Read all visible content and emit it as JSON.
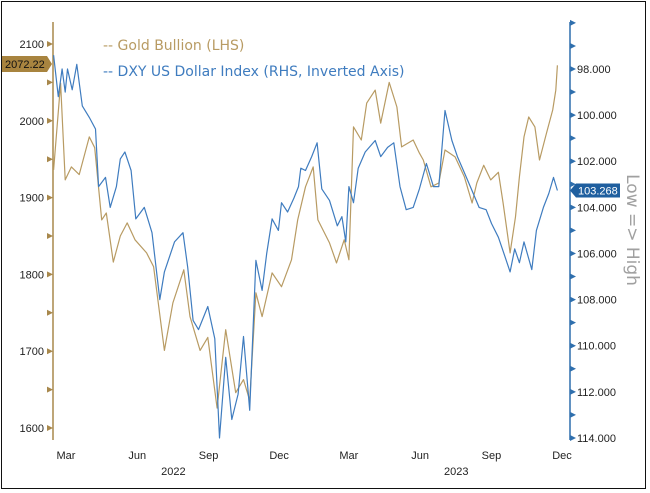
{
  "chart_data": {
    "type": "line",
    "title": "",
    "legend": {
      "placement": "top-left",
      "entries": [
        "-- Gold Bullion (LHS)",
        "-- DXY US Dollar Index (RHS, Inverted Axis)"
      ]
    },
    "x_axis": {
      "month_labels": [
        {
          "label": "Mar",
          "date": "2022-03-01"
        },
        {
          "label": "Jun",
          "date": "2022-06-01"
        },
        {
          "label": "Sep",
          "date": "2022-09-01"
        },
        {
          "label": "Dec",
          "date": "2022-12-01"
        },
        {
          "label": "Mar",
          "date": "2023-03-01"
        },
        {
          "label": "Jun",
          "date": "2023-06-01"
        },
        {
          "label": "Sep",
          "date": "2023-09-01"
        },
        {
          "label": "Dec",
          "date": "2023-12-01"
        }
      ],
      "year_labels": [
        {
          "label": "2022",
          "date": "2022-07-15"
        },
        {
          "label": "2023",
          "date": "2023-07-15"
        }
      ]
    },
    "y_left": {
      "range": [
        1600,
        2100
      ],
      "ticks": [
        "1600",
        "1700",
        "1800",
        "1900",
        "2000",
        "2100"
      ],
      "color": "#a8884c"
    },
    "y_right": {
      "range": [
        96,
        114
      ],
      "inverted": true,
      "ticks": [
        "98.000",
        "100.000",
        "102.000",
        "104.000",
        "106.000",
        "108.000",
        "110.000",
        "112.000",
        "114.000"
      ],
      "label": "Low => High",
      "color": "#2f6fad"
    },
    "grid": false,
    "series": [
      {
        "name": "Gold Bullion (LHS)",
        "axis": "left",
        "color": "#b89b63",
        "last_value_tag": "2072.22",
        "tag_color": "#a8843f",
        "points": [
          [
            "2022-02-13",
            1936
          ],
          [
            "2022-02-22",
            2049
          ],
          [
            "2022-02-28",
            1923
          ],
          [
            "2022-03-08",
            1940
          ],
          [
            "2022-03-18",
            1930
          ],
          [
            "2022-03-31",
            1979
          ],
          [
            "2022-04-07",
            1965
          ],
          [
            "2022-04-16",
            1871
          ],
          [
            "2022-04-22",
            1880
          ],
          [
            "2022-05-01",
            1816
          ],
          [
            "2022-05-10",
            1850
          ],
          [
            "2022-05-19",
            1867
          ],
          [
            "2022-05-29",
            1845
          ],
          [
            "2022-06-13",
            1828
          ],
          [
            "2022-06-22",
            1810
          ],
          [
            "2022-07-06",
            1701
          ],
          [
            "2022-07-17",
            1763
          ],
          [
            "2022-07-31",
            1806
          ],
          [
            "2022-08-08",
            1745
          ],
          [
            "2022-08-21",
            1701
          ],
          [
            "2022-08-31",
            1718
          ],
          [
            "2022-09-12",
            1626
          ],
          [
            "2022-09-23",
            1728
          ],
          [
            "2022-10-06",
            1646
          ],
          [
            "2022-10-16",
            1663
          ],
          [
            "2022-10-24",
            1636
          ],
          [
            "2022-11-01",
            1776
          ],
          [
            "2022-11-09",
            1745
          ],
          [
            "2022-11-22",
            1802
          ],
          [
            "2022-12-04",
            1784
          ],
          [
            "2022-12-17",
            1819
          ],
          [
            "2022-12-25",
            1871
          ],
          [
            "2023-01-04",
            1914
          ],
          [
            "2023-01-14",
            1940
          ],
          [
            "2023-01-20",
            1871
          ],
          [
            "2023-02-04",
            1841
          ],
          [
            "2023-02-13",
            1815
          ],
          [
            "2023-02-23",
            1845
          ],
          [
            "2023-03-01",
            1819
          ],
          [
            "2023-03-07",
            1992
          ],
          [
            "2023-03-17",
            1975
          ],
          [
            "2023-03-24",
            2023
          ],
          [
            "2023-04-04",
            2040
          ],
          [
            "2023-04-11",
            1997
          ],
          [
            "2023-04-22",
            2050
          ],
          [
            "2023-05-02",
            2018
          ],
          [
            "2023-05-08",
            1966
          ],
          [
            "2023-05-23",
            1975
          ],
          [
            "2023-05-31",
            1958
          ],
          [
            "2023-06-05",
            1949
          ],
          [
            "2023-06-15",
            1914
          ],
          [
            "2023-06-25",
            1919
          ],
          [
            "2023-07-03",
            1962
          ],
          [
            "2023-07-16",
            1953
          ],
          [
            "2023-07-28",
            1927
          ],
          [
            "2023-08-07",
            1893
          ],
          [
            "2023-08-13",
            1919
          ],
          [
            "2023-08-22",
            1942
          ],
          [
            "2023-08-31",
            1923
          ],
          [
            "2023-09-10",
            1933
          ],
          [
            "2023-09-16",
            1893
          ],
          [
            "2023-09-25",
            1828
          ],
          [
            "2023-10-02",
            1875
          ],
          [
            "2023-10-07",
            1927
          ],
          [
            "2023-10-13",
            1979
          ],
          [
            "2023-10-19",
            2005
          ],
          [
            "2023-10-27",
            1992
          ],
          [
            "2023-11-02",
            1949
          ],
          [
            "2023-11-11",
            1984
          ],
          [
            "2023-11-19",
            2014
          ],
          [
            "2023-11-23",
            2040
          ],
          [
            "2023-11-25",
            2072.22
          ]
        ]
      },
      {
        "name": "DXY US Dollar Index (RHS, Inverted Axis)",
        "axis": "right",
        "color": "#3f7cbf",
        "last_value_tag": "103.268",
        "tag_color": "#1f5f9f",
        "points": [
          [
            "2022-02-13",
            97.4
          ],
          [
            "2022-02-19",
            99.2
          ],
          [
            "2022-02-24",
            98.0
          ],
          [
            "2022-02-28",
            99.0
          ],
          [
            "2022-03-03",
            98.0
          ],
          [
            "2022-03-09",
            98.9
          ],
          [
            "2022-03-15",
            97.8
          ],
          [
            "2022-03-22",
            99.6
          ],
          [
            "2022-03-31",
            100.1
          ],
          [
            "2022-04-08",
            100.6
          ],
          [
            "2022-04-12",
            103.1
          ],
          [
            "2022-04-21",
            102.7
          ],
          [
            "2022-04-27",
            104.0
          ],
          [
            "2022-05-05",
            103.1
          ],
          [
            "2022-05-10",
            101.9
          ],
          [
            "2022-05-16",
            101.6
          ],
          [
            "2022-05-24",
            102.4
          ],
          [
            "2022-05-30",
            104.5
          ],
          [
            "2022-06-10",
            104.0
          ],
          [
            "2022-06-20",
            105.1
          ],
          [
            "2022-06-30",
            108.0
          ],
          [
            "2022-07-06",
            106.8
          ],
          [
            "2022-07-19",
            105.5
          ],
          [
            "2022-07-30",
            105.1
          ],
          [
            "2022-08-05",
            106.6
          ],
          [
            "2022-08-12",
            108.9
          ],
          [
            "2022-08-19",
            109.3
          ],
          [
            "2022-08-31",
            108.3
          ],
          [
            "2022-09-09",
            109.7
          ],
          [
            "2022-09-15",
            114.0
          ],
          [
            "2022-09-23",
            110.5
          ],
          [
            "2022-10-01",
            113.2
          ],
          [
            "2022-10-09",
            112.1
          ],
          [
            "2022-10-16",
            109.6
          ],
          [
            "2022-10-24",
            112.8
          ],
          [
            "2022-11-01",
            106.3
          ],
          [
            "2022-11-09",
            107.6
          ],
          [
            "2022-11-15",
            106.0
          ],
          [
            "2022-11-22",
            104.5
          ],
          [
            "2022-11-30",
            105.0
          ],
          [
            "2022-12-04",
            103.8
          ],
          [
            "2022-12-12",
            104.2
          ],
          [
            "2022-12-20",
            103.6
          ],
          [
            "2022-12-26",
            103.1
          ],
          [
            "2022-12-29",
            102.3
          ],
          [
            "2023-01-04",
            102.4
          ],
          [
            "2023-01-12",
            101.8
          ],
          [
            "2023-01-19",
            101.2
          ],
          [
            "2023-01-25",
            103.2
          ],
          [
            "2023-02-04",
            103.7
          ],
          [
            "2023-02-14",
            104.8
          ],
          [
            "2023-02-20",
            104.4
          ],
          [
            "2023-02-25",
            105.5
          ],
          [
            "2023-03-01",
            103.1
          ],
          [
            "2023-03-07",
            103.8
          ],
          [
            "2023-03-13",
            102.3
          ],
          [
            "2023-03-22",
            101.6
          ],
          [
            "2023-04-04",
            101.1
          ],
          [
            "2023-04-11",
            101.8
          ],
          [
            "2023-04-20",
            101.4
          ],
          [
            "2023-04-28",
            101.2
          ],
          [
            "2023-05-06",
            103.1
          ],
          [
            "2023-05-14",
            104.1
          ],
          [
            "2023-05-23",
            104.0
          ],
          [
            "2023-05-31",
            103.2
          ],
          [
            "2023-06-09",
            102.1
          ],
          [
            "2023-06-18",
            103.1
          ],
          [
            "2023-06-25",
            103.1
          ],
          [
            "2023-07-03",
            99.8
          ],
          [
            "2023-07-12",
            101.1
          ],
          [
            "2023-07-19",
            101.8
          ],
          [
            "2023-07-28",
            102.5
          ],
          [
            "2023-08-06",
            103.2
          ],
          [
            "2023-08-16",
            104.0
          ],
          [
            "2023-08-25",
            104.1
          ],
          [
            "2023-09-01",
            104.7
          ],
          [
            "2023-09-10",
            105.3
          ],
          [
            "2023-09-18",
            106.1
          ],
          [
            "2023-09-25",
            106.8
          ],
          [
            "2023-10-01",
            105.8
          ],
          [
            "2023-10-07",
            106.4
          ],
          [
            "2023-10-13",
            105.5
          ],
          [
            "2023-10-23",
            106.7
          ],
          [
            "2023-10-29",
            105.0
          ],
          [
            "2023-11-07",
            104.0
          ],
          [
            "2023-11-14",
            103.4
          ],
          [
            "2023-11-20",
            102.7
          ],
          [
            "2023-11-25",
            103.268
          ]
        ]
      }
    ]
  }
}
